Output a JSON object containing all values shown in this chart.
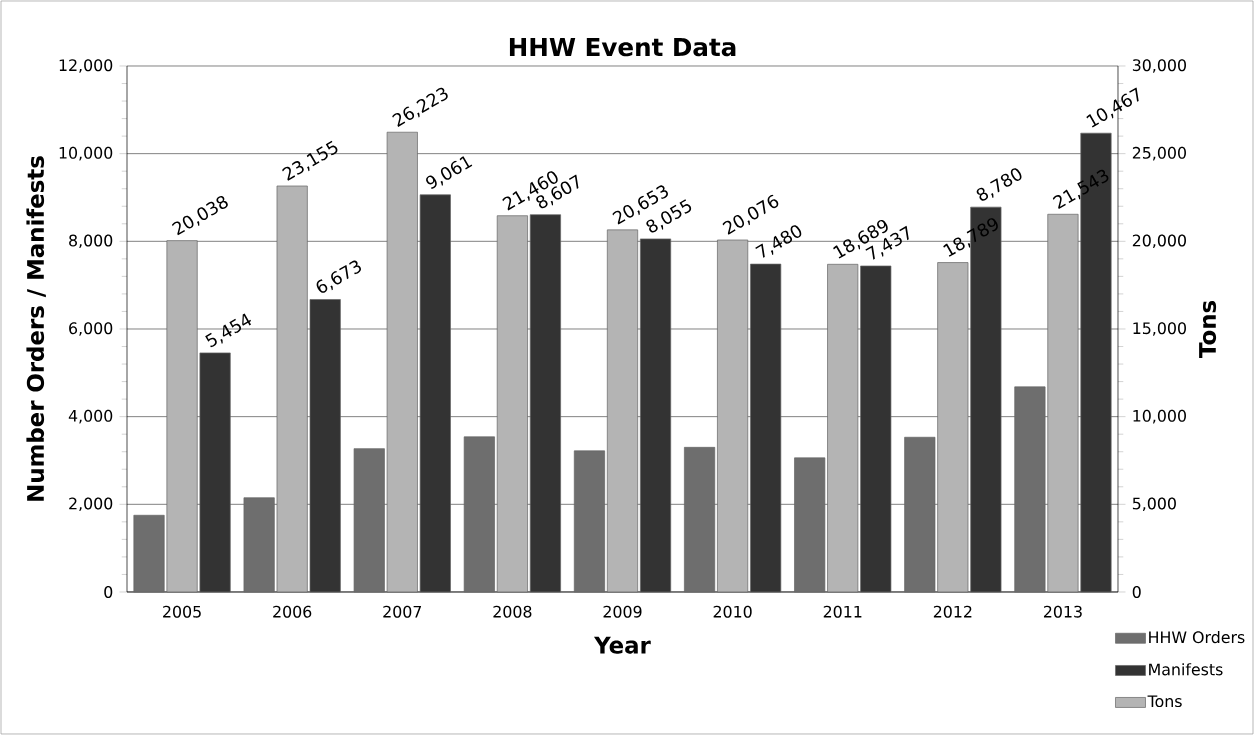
{
  "chart_data": {
    "type": "bar",
    "title": "HHW Event Data",
    "xlabel": "Year",
    "ylabel": "Number Orders / Manifests",
    "y2label": "Tons",
    "categories": [
      "2005",
      "2006",
      "2007",
      "2008",
      "2009",
      "2010",
      "2011",
      "2012",
      "2013"
    ],
    "series": [
      {
        "name": "HHW Orders",
        "color": "#6e6e6e",
        "values": [
          1750,
          2150,
          3270,
          3540,
          3220,
          3300,
          3060,
          3530,
          4680
        ]
      },
      {
        "name": "Tons",
        "color": "#b4b4b4",
        "axis": "y2",
        "values": [
          20038,
          23155,
          26223,
          21460,
          20653,
          20076,
          18689,
          18789,
          21543
        ],
        "value_labels": [
          "20,038",
          "23,155",
          "26,223",
          "21,460",
          "20,653",
          "20,076",
          "18,689",
          "18,789",
          "21,543"
        ]
      },
      {
        "name": "Manifests",
        "color": "#333333",
        "values": [
          5454,
          6673,
          9061,
          8607,
          8055,
          7480,
          7437,
          8780,
          10467
        ],
        "value_labels": [
          "5,454",
          "6,673",
          "9,061",
          "8,607",
          "8,055",
          "7,480",
          "7,437",
          "8,780",
          "10,467"
        ]
      }
    ],
    "ylim": [
      0,
      12000
    ],
    "yticks": [
      0,
      {
        "value": 2000,
        "label": "2,000"
      },
      {
        "value": 4000,
        "label": "4,000"
      },
      {
        "value": 6000,
        "label": "6,000"
      },
      {
        "value": 8000,
        "label": "8,000"
      },
      {
        "value": 10000,
        "label": "10,000"
      },
      {
        "value": 12000,
        "label": "12,000"
      }
    ],
    "y2lim": [
      0,
      30000
    ],
    "y2ticks": [
      0,
      {
        "value": 5000,
        "label": "5,000"
      },
      {
        "value": 10000,
        "label": "10,000"
      },
      {
        "value": 15000,
        "label": "15,000"
      },
      {
        "value": 20000,
        "label": "20,000"
      },
      {
        "value": 25000,
        "label": "25,000"
      },
      {
        "value": 30000,
        "label": "30,000"
      }
    ],
    "grid": "y",
    "legend": "bottom right"
  }
}
